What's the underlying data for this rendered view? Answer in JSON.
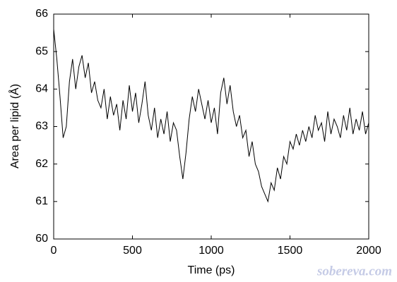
{
  "chart_data": {
    "type": "line",
    "xlabel": "Time (ps)",
    "ylabel": "Area per lipid (Å)",
    "watermark": "sobereva.com",
    "x": [
      0,
      20,
      40,
      60,
      80,
      100,
      120,
      140,
      160,
      180,
      200,
      220,
      240,
      260,
      280,
      300,
      320,
      340,
      360,
      380,
      400,
      420,
      440,
      460,
      480,
      500,
      520,
      540,
      560,
      580,
      600,
      620,
      640,
      660,
      680,
      700,
      720,
      740,
      760,
      780,
      800,
      820,
      840,
      860,
      880,
      900,
      920,
      940,
      960,
      980,
      1000,
      1020,
      1040,
      1060,
      1080,
      1100,
      1120,
      1140,
      1160,
      1180,
      1200,
      1220,
      1240,
      1260,
      1280,
      1300,
      1320,
      1340,
      1360,
      1380,
      1400,
      1420,
      1440,
      1460,
      1480,
      1500,
      1520,
      1540,
      1560,
      1580,
      1600,
      1620,
      1640,
      1660,
      1680,
      1700,
      1720,
      1740,
      1760,
      1780,
      1800,
      1820,
      1840,
      1860,
      1880,
      1900,
      1920,
      1940,
      1960,
      1980,
      2000
    ],
    "series": [
      {
        "color": "#000000",
        "values": [
          65.6,
          64.8,
          63.8,
          62.7,
          63.0,
          64.2,
          64.8,
          64.0,
          64.6,
          64.9,
          64.3,
          64.7,
          63.9,
          64.2,
          63.7,
          63.5,
          64.0,
          63.2,
          63.8,
          63.3,
          63.6,
          62.9,
          63.7,
          63.2,
          64.1,
          63.4,
          63.9,
          63.1,
          63.6,
          64.2,
          63.3,
          62.9,
          63.5,
          62.7,
          63.2,
          62.8,
          63.4,
          62.6,
          63.1,
          62.9,
          62.2,
          61.6,
          62.3,
          63.2,
          63.8,
          63.4,
          64.0,
          63.6,
          63.2,
          63.7,
          63.1,
          63.5,
          62.8,
          63.9,
          64.3,
          63.6,
          64.1,
          63.4,
          63.0,
          63.3,
          62.7,
          62.9,
          62.2,
          62.6,
          62.0,
          61.8,
          61.4,
          61.2,
          61.0,
          61.5,
          61.3,
          61.9,
          61.6,
          62.2,
          62.0,
          62.6,
          62.4,
          62.8,
          62.5,
          62.9,
          62.6,
          63.0,
          62.7,
          63.3,
          62.9,
          63.1,
          62.6,
          63.4,
          62.8,
          63.2,
          63.0,
          62.7,
          63.3,
          62.9,
          63.5,
          62.8,
          63.2,
          62.9,
          63.4,
          62.8,
          63.1
        ]
      }
    ],
    "xlim": [
      0,
      2000
    ],
    "xticks": [
      0,
      500,
      1000,
      1500,
      2000
    ],
    "ylim": [
      60,
      66
    ],
    "yticks": [
      60,
      61,
      62,
      63,
      64,
      65,
      66
    ]
  }
}
